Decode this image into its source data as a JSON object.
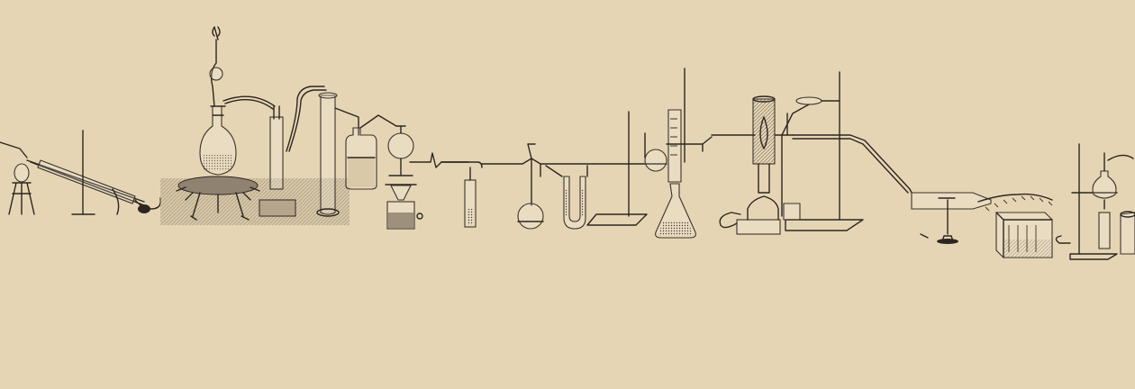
{
  "scene": {
    "background": "#e6d5b4",
    "ink": "#2c2620",
    "engraving_shadow": "#c9b99a"
  }
}
